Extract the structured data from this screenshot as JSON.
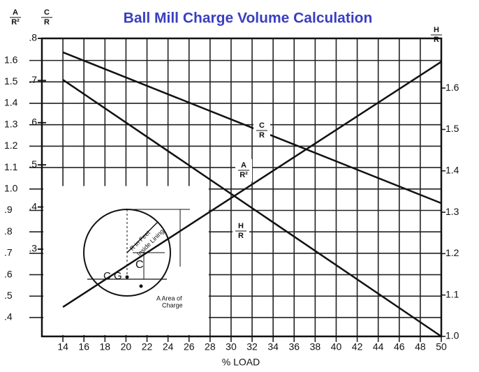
{
  "chart_data": {
    "type": "nomograph",
    "title": "Ball Mill Charge Volume Calculation",
    "x_label": "% LOAD",
    "xlim": [
      12,
      50
    ],
    "xticks": [
      14,
      16,
      18,
      20,
      22,
      24,
      26,
      28,
      30,
      32,
      34,
      36,
      38,
      40,
      42,
      44,
      46,
      48,
      50
    ],
    "a_axis": {
      "num": "A",
      "den": "R²",
      "lim": [
        0.312,
        1.703
      ],
      "ticks": [
        {
          "value": 0.4,
          "label": ".4"
        },
        {
          "value": 0.5,
          "label": ".5"
        },
        {
          "value": 0.6,
          "label": ".6"
        },
        {
          "value": 0.7,
          "label": ".7"
        },
        {
          "value": 0.8,
          "label": ".8"
        },
        {
          "value": 0.9,
          "label": ".9"
        },
        {
          "value": 1,
          "label": "1.0"
        },
        1.1,
        1.2,
        1.3,
        1.4,
        1.5,
        1.6
      ]
    },
    "c_axis": {
      "num": "C",
      "den": "R",
      "lim": [
        0.093,
        0.8
      ],
      "ticks": [
        {
          "value": 0.8,
          "label": ".8"
        },
        {
          "value": 0.7,
          "label": ".7"
        },
        {
          "value": 0.6,
          "label": ".6"
        },
        {
          "value": 0.5,
          "label": ".5"
        },
        {
          "value": 0.4,
          "label": ".4"
        },
        {
          "value": 0.3,
          "label": ".3"
        }
      ]
    },
    "h_axis": {
      "num": "H",
      "den": "R",
      "lim": [
        1,
        1.72
      ],
      "ticks": [
        {
          "value": 1,
          "label": "1.0"
        },
        1.1,
        1.2,
        1.3,
        1.4,
        1.5,
        1.6
      ]
    },
    "series": [
      {
        "num": "C",
        "den": "R",
        "axis": "c_axis",
        "x": [
          14,
          50
        ],
        "values": [
          0.767,
          0.409
        ],
        "color": "#111111"
      },
      {
        "num": "A",
        "den": "R²",
        "axis": "a_axis",
        "x": [
          14,
          50
        ],
        "values": [
          0.449,
          1.594
        ],
        "color": "#111111"
      },
      {
        "num": "H",
        "den": "R",
        "axis": "h_axis",
        "x": [
          14,
          50
        ],
        "values": [
          1.62,
          1.0
        ],
        "color": "#111111"
      }
    ],
    "inset": {
      "radius_label": "R in Feet",
      "lining_label": "Inside Lining",
      "c_label": "C",
      "cg_label": "C G",
      "area_label_1": "A  Area of",
      "area_label_2": "Charge"
    }
  }
}
